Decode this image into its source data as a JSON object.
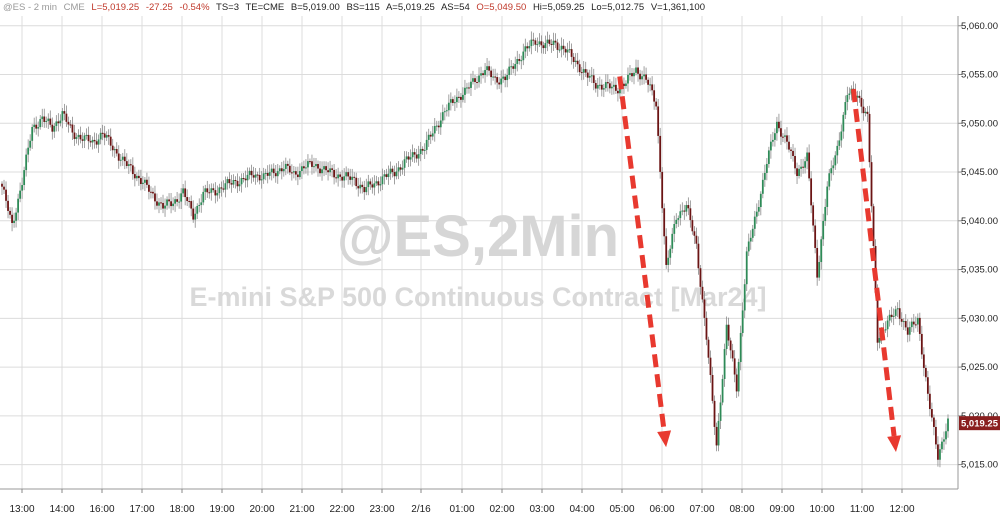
{
  "header": {
    "symbol": "@ES - 2 min",
    "exchange_tag": "CME",
    "last": "L=5,019.25",
    "change": "-27.25",
    "change_pct": "-0.54%",
    "ts": "TS=3",
    "te": "TE=CME",
    "bid": "B=5,019.00",
    "bid_size": "BS=115",
    "ask": "A=5,019.25",
    "ask_size": "AS=54",
    "open": "O=5,049.50",
    "high": "Hi=5,059.25",
    "low": "Lo=5,012.75",
    "volume": "V=1,361,100"
  },
  "watermark": {
    "line1": "@ES,2Min",
    "line2": "E-mini S&P 500 Continuous Contract [Mar24]"
  },
  "colors": {
    "up": "#2e8a57",
    "down": "#6b1414",
    "wick": "#8a8a8a",
    "grid": "#dcdcdc",
    "arrow": "#e8392f",
    "last_badge": "#8a1f1f",
    "header_red": "#c0392b",
    "header_gray": "#999999"
  },
  "chart_data": {
    "type": "line",
    "title": "",
    "y_axis_side": "right",
    "ylim": [
      5012.5,
      5061.0
    ],
    "y_ticks": [
      "5,060.00",
      "5,055.00",
      "5,050.00",
      "5,045.00",
      "5,040.00",
      "5,035.00",
      "5,030.00",
      "5,025.00",
      "5,020.00",
      "5,015.00"
    ],
    "y_tick_values": [
      5060,
      5055,
      5050,
      5045,
      5040,
      5035,
      5030,
      5025,
      5020,
      5015
    ],
    "x_ticks": [
      "13:00",
      "14:00",
      "16:00",
      "17:00",
      "18:00",
      "19:00",
      "20:00",
      "21:00",
      "22:00",
      "23:00",
      "2/16",
      "01:00",
      "02:00",
      "03:00",
      "04:00",
      "05:00",
      "06:00",
      "07:00",
      "08:00",
      "09:00",
      "10:00",
      "11:00",
      "12:00"
    ],
    "last_price_label": "5,019.25",
    "last_price": 5019.25,
    "series": [
      {
        "values": [
          5043.5,
          5039.5,
          5044,
          5049.5,
          5050.5,
          5049.5,
          5051,
          5049,
          5048.5,
          5048,
          5049,
          5047.5,
          5046.2,
          5045,
          5044,
          5042.5,
          5041.5,
          5041.8,
          5043,
          5040.5,
          5042.8,
          5043,
          5043.5,
          5044,
          5044.2,
          5044.8,
          5044.5,
          5045,
          5045.5,
          5044.8,
          5045.5,
          5045.8,
          5045.2,
          5044.8,
          5044.5,
          5044.2,
          5043.2,
          5043.8,
          5044.5,
          5045,
          5046,
          5046.8,
          5047.5,
          5049.5,
          5051.2,
          5052.5,
          5053.2,
          5054.5,
          5055.5,
          5054.5,
          5054.6,
          5056.2,
          5057.5,
          5058.5,
          5058,
          5058.2,
          5057.5,
          5056.3,
          5055,
          5054,
          5053.8,
          5053.5,
          5054.2,
          5055.5,
          5054.5,
          5052,
          5035,
          5040.5,
          5041.5,
          5037.5,
          5028,
          5017,
          5029,
          5023,
          5036.5,
          5041,
          5046,
          5050,
          5048,
          5045,
          5046.5,
          5034.5,
          5043.5,
          5047.5,
          5053,
          5053,
          5050.5,
          5028,
          5029.5,
          5031,
          5028.5,
          5030,
          5022,
          5016,
          5019.25
        ]
      }
    ],
    "annotations": [
      {
        "type": "arrow",
        "color": "red",
        "style": "dashed",
        "from": [
          5054.8,
          65.3
        ],
        "to": [
          5016.8,
          70.2
        ]
      },
      {
        "type": "arrow",
        "color": "red",
        "style": "dashed",
        "from": [
          5053.5,
          90.0
        ],
        "to": [
          5016.3,
          94.5
        ]
      }
    ]
  }
}
